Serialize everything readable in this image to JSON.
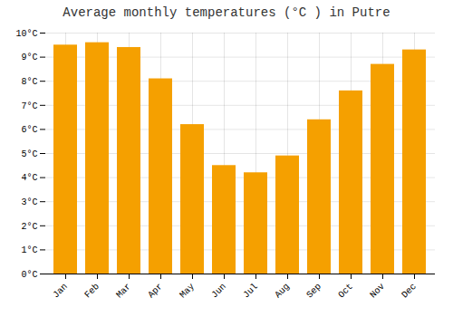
{
  "chart_data": {
    "type": "bar",
    "title": "Average monthly temperatures (°C ) in Putre",
    "categories": [
      "Jan",
      "Feb",
      "Mar",
      "Apr",
      "May",
      "Jun",
      "Jul",
      "Aug",
      "Sep",
      "Oct",
      "Nov",
      "Dec"
    ],
    "values": [
      9.5,
      9.6,
      9.4,
      8.1,
      6.2,
      4.5,
      4.2,
      4.9,
      6.4,
      7.6,
      8.7,
      9.3
    ],
    "color": "#F5A000",
    "ylim": [
      0,
      10
    ],
    "yticks": [
      {
        "value": 0,
        "label": "0°C"
      },
      {
        "value": 1,
        "label": "1°C"
      },
      {
        "value": 2,
        "label": "2°C"
      },
      {
        "value": 3,
        "label": "3°C"
      },
      {
        "value": 4,
        "label": "4°C"
      },
      {
        "value": 5,
        "label": "5°C"
      },
      {
        "value": 6,
        "label": "6°C"
      },
      {
        "value": 7,
        "label": "7°C"
      },
      {
        "value": 8,
        "label": "8°C"
      },
      {
        "value": 9,
        "label": "9°C"
      },
      {
        "value": 10,
        "label": "10°C"
      }
    ],
    "grid": true
  }
}
